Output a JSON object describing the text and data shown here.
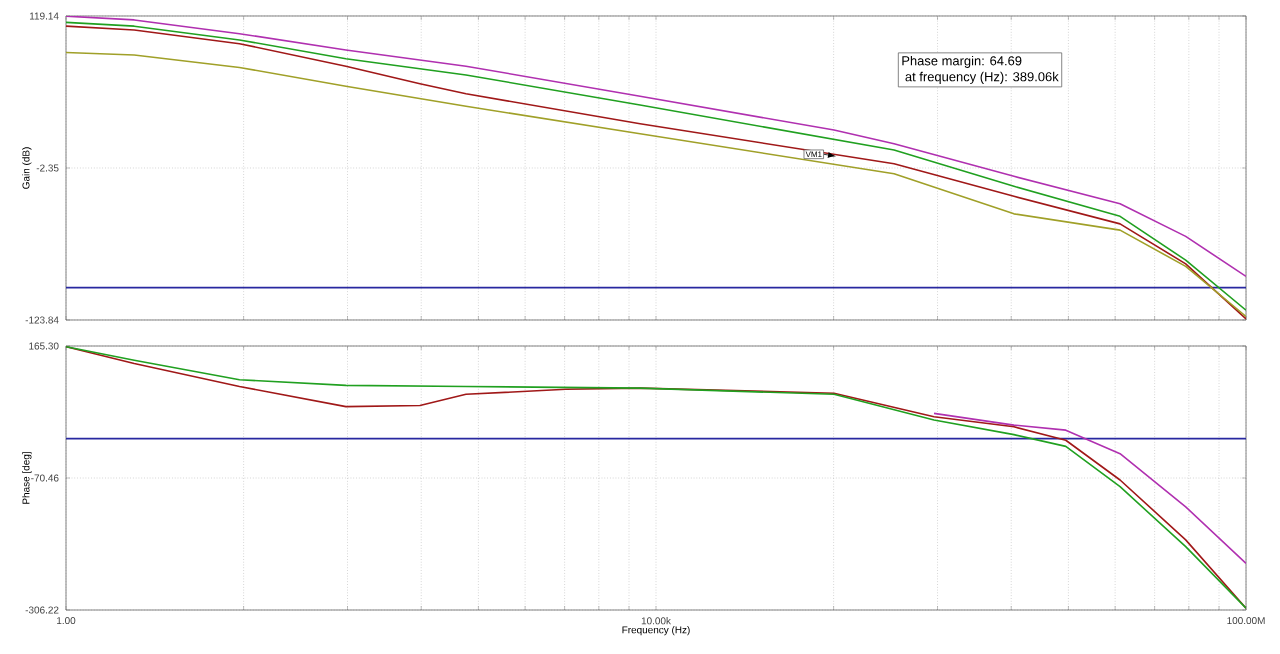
{
  "chart_data": [
    {
      "type": "line",
      "ylabel": "Gain (dB)",
      "log": "x",
      "grid": true,
      "tick_labels": "y",
      "xlim": [
        1,
        100000000
      ],
      "ylim": [
        -123.84,
        119.14
      ],
      "xticks": [
        {
          "value": 1,
          "label": null
        },
        {
          "value": 16,
          "label": null
        },
        {
          "value": 81,
          "label": null
        },
        {
          "value": 256,
          "label": null
        },
        {
          "value": 625,
          "label": null
        },
        {
          "value": 1296,
          "label": null
        },
        {
          "value": 2401,
          "label": null
        },
        {
          "value": 4096,
          "label": null
        },
        {
          "value": 6561,
          "label": null
        },
        {
          "value": 10000,
          "label": null
        },
        {
          "value": 160000,
          "label": null
        },
        {
          "value": 810000,
          "label": null
        },
        {
          "value": 2560000,
          "label": null
        },
        {
          "value": 6250000,
          "label": null
        },
        {
          "value": 12960000,
          "label": null
        },
        {
          "value": 24010000,
          "label": null
        },
        {
          "value": 40960000,
          "label": null
        },
        {
          "value": 65610000,
          "label": null
        },
        {
          "value": 100000000,
          "label": null
        }
      ],
      "yticks": [
        {
          "value": -123.84,
          "label": "-123.84"
        },
        {
          "value": -2.35,
          "label": "-2.35"
        },
        {
          "value": 119.14,
          "label": "119.14"
        }
      ],
      "series": [
        {
          "color": "#b030b0",
          "x": [
            1,
            2.9,
            15,
            79,
            515,
            7800,
            161000,
            411000,
            2670000,
            14000000,
            39000000,
            100000000
          ],
          "values": [
            119,
            116,
            105,
            92,
            79,
            55,
            28,
            17,
            -9,
            -31,
            -57,
            -89
          ]
        },
        {
          "color": "#20a020",
          "x": [
            1,
            2.9,
            15,
            79,
            515,
            7800,
            411000,
            2670000,
            14000000,
            39000000,
            100000000
          ],
          "values": [
            114,
            111,
            100,
            85,
            72,
            48,
            12,
            -17,
            -41,
            -76,
            -116
          ]
        },
        {
          "color": "#a01818",
          "x": [
            1,
            2.9,
            15,
            79,
            251,
            515,
            7800,
            411000,
            2670000,
            14000000,
            39000000,
            100000000
          ],
          "values": [
            111,
            108,
            97,
            79,
            65,
            57,
            33,
            1,
            -25,
            -47,
            -79,
            -123
          ]
        },
        {
          "color": "#a0a028",
          "x": [
            1,
            2.9,
            15,
            79,
            515,
            7800,
            411000,
            2670000,
            14000000,
            39000000,
            100000000
          ],
          "values": [
            90,
            88,
            78,
            63,
            47,
            25,
            -7,
            -39,
            -52,
            -81,
            -121
          ]
        }
      ],
      "ref_lines": [
        {
          "axis": "y",
          "value": -98,
          "color": "#2828a0"
        }
      ],
      "annotations": [
        {
          "text": "VM1",
          "x": 166000,
          "y": 7
        },
        "Phase margin: 64.69",
        " at frequency (Hz): 389.06k"
      ]
    },
    {
      "type": "line",
      "xlabel": "Frequency (Hz)",
      "ylabel": "Phase [deg]",
      "log": "x",
      "grid": true,
      "xlim": [
        1,
        100000000
      ],
      "ylim": [
        -306.22,
        165.3
      ],
      "xticks": [
        {
          "value": 1,
          "label": "1.00"
        },
        {
          "value": 16,
          "label": null
        },
        {
          "value": 81,
          "label": null
        },
        {
          "value": 256,
          "label": null
        },
        {
          "value": 625,
          "label": null
        },
        {
          "value": 1296,
          "label": null
        },
        {
          "value": 2401,
          "label": null
        },
        {
          "value": 4096,
          "label": null
        },
        {
          "value": 6561,
          "label": null
        },
        {
          "value": 10000,
          "label": "10.00k"
        },
        {
          "value": 160000,
          "label": null
        },
        {
          "value": 810000,
          "label": null
        },
        {
          "value": 2560000,
          "label": null
        },
        {
          "value": 6250000,
          "label": null
        },
        {
          "value": 12960000,
          "label": null
        },
        {
          "value": 24010000,
          "label": null
        },
        {
          "value": 40960000,
          "label": null
        },
        {
          "value": 65610000,
          "label": null
        },
        {
          "value": 100000000,
          "label": "100.00M"
        }
      ],
      "yticks": [
        {
          "value": -306.22,
          "label": "-306.22"
        },
        {
          "value": -70.46,
          "label": "-70.46"
        },
        {
          "value": 165.3,
          "label": "165.30"
        }
      ],
      "series": [
        {
          "color": "#b030b0",
          "x": [
            767000,
            2670000,
            6000000,
            14000000,
            39000000,
            100000000
          ],
          "values": [
            45,
            24,
            15,
            -27,
            -122,
            -223
          ]
        },
        {
          "color": "#a01818",
          "x": [
            1,
            2.9,
            15,
            79,
            251,
            515,
            2450,
            7800,
            161000,
            767000,
            2670000,
            6000000,
            14000000,
            39000000,
            100000000
          ],
          "values": [
            164,
            134,
            93,
            57,
            59,
            79,
            88,
            90,
            81,
            39,
            21,
            -3,
            -74,
            -181,
            -303
          ]
        },
        {
          "color": "#20a020",
          "x": [
            1,
            2.9,
            15,
            79,
            515,
            7800,
            161000,
            767000,
            2670000,
            6000000,
            14000000,
            39000000,
            100000000
          ],
          "values": [
            164,
            140,
            105,
            95,
            93,
            90,
            79,
            33,
            7,
            -14,
            -86,
            -193,
            -303
          ]
        }
      ],
      "ref_lines": [
        {
          "axis": "y",
          "value": 0,
          "color": "#2828a0"
        }
      ]
    }
  ]
}
